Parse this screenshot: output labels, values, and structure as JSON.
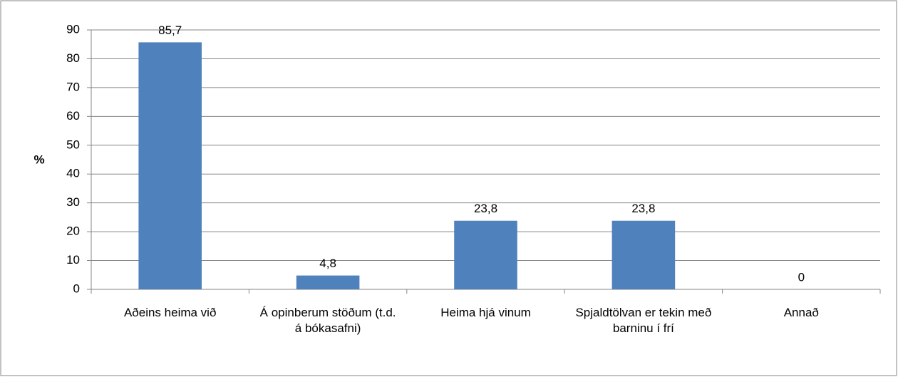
{
  "chart_data": {
    "type": "bar",
    "y_label": "%",
    "categories": [
      "Aðeins heima við",
      "Á opinberum stöðum (t.d. á bókasafni)",
      "Heima hjá vinum",
      "Spjaldtölvan er tekin með barninu í frí",
      "Annað"
    ],
    "values": [
      85.7,
      4.8,
      23.8,
      23.8,
      0
    ],
    "value_labels": [
      "85,7",
      "4,8",
      "23,8",
      "23,8",
      "0"
    ],
    "color": "#4f81bd",
    "ylim": [
      0,
      90
    ],
    "yticks": [
      0,
      10,
      20,
      30,
      40,
      50,
      60,
      70,
      80,
      90
    ],
    "grid": true
  }
}
